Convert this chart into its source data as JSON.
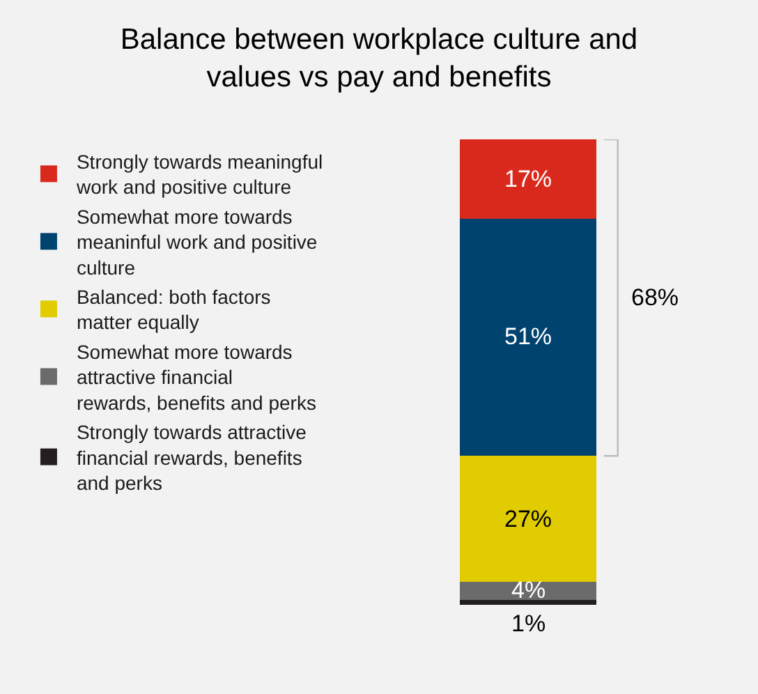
{
  "chart_data": {
    "type": "bar",
    "stacked": true,
    "title": "Balance between workplace culture and values vs pay and benefits",
    "categories": [
      null
    ],
    "series": [
      {
        "name": "Strongly towards attractive financial rewards, benefits and perks",
        "color": "#231f20",
        "values": [
          1
        ],
        "value_labels": [
          "1%"
        ]
      },
      {
        "name": "Somewhat more towards attractive financial rewards, benefits and perks",
        "color": "#6b6b6b",
        "values": [
          4
        ],
        "value_labels": [
          "4%"
        ]
      },
      {
        "name": "Balanced: both factors matter equally",
        "color": "#e0cc00",
        "values": [
          27
        ],
        "value_labels": [
          "27%"
        ]
      },
      {
        "name": "Somewhat more towards meaninful work and positive culture",
        "color": "#00436e",
        "values": [
          51
        ],
        "value_labels": [
          "51%"
        ]
      },
      {
        "name": "Strongly towards meaningful work and positive culture",
        "color": "#d9291c",
        "values": [
          17
        ],
        "value_labels": [
          "17%"
        ]
      }
    ],
    "annotations": [
      "68%"
    ],
    "legend": "left"
  }
}
